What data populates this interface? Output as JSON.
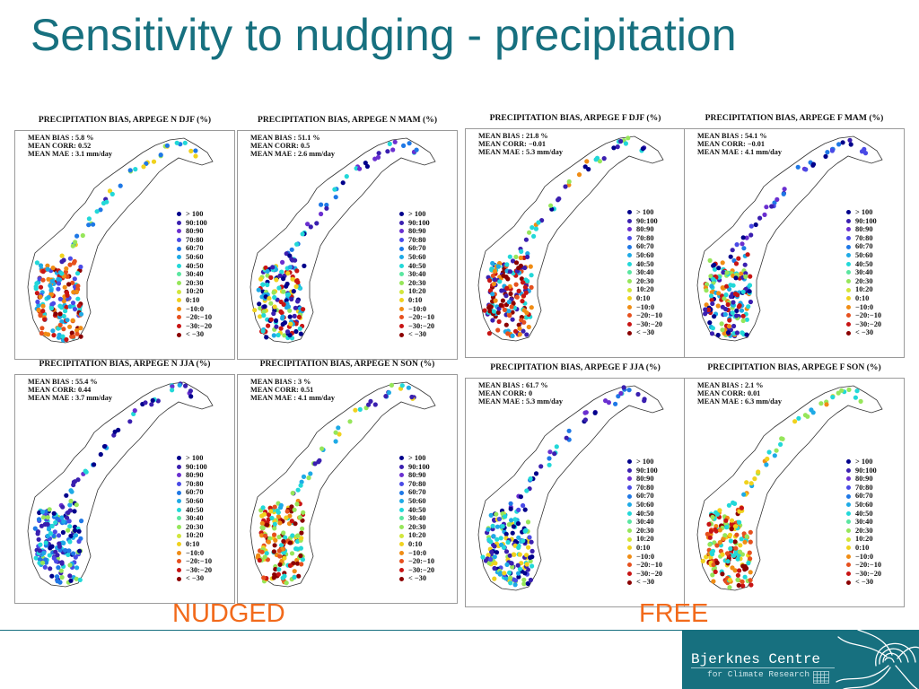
{
  "slide": {
    "title": "Sensitivity to nudging - precipitation",
    "label_left": "NUDGED",
    "label_right": "FREE"
  },
  "colors": {
    "title": "#17707f",
    "label": "#f26a1b",
    "brand": "#17707f"
  },
  "legend": [
    {
      "label": "> 100",
      "color": "#00008b"
    },
    {
      "label": "90:100",
      "color": "#3a1fb0"
    },
    {
      "label": "80:90",
      "color": "#6a2fd0"
    },
    {
      "label": "70:80",
      "color": "#4a4ae6"
    },
    {
      "label": "60:70",
      "color": "#1e78e6"
    },
    {
      "label": "50:60",
      "color": "#1eaae6"
    },
    {
      "label": "40:50",
      "color": "#22d8d8"
    },
    {
      "label": "30:40",
      "color": "#5ae6a0"
    },
    {
      "label": "20:30",
      "color": "#96e65a"
    },
    {
      "label": "10:20",
      "color": "#d2e63c"
    },
    {
      "label": "0:10",
      "color": "#f0d21e"
    },
    {
      "label": "−10:0",
      "color": "#f08c14"
    },
    {
      "label": "−20:−10",
      "color": "#e6501e"
    },
    {
      "label": "−30:−20",
      "color": "#c81414"
    },
    {
      "label": "< −30",
      "color": "#8b0000"
    }
  ],
  "panels": [
    {
      "id": "n-djf",
      "title": "PRECIPITATION BIAS, ARPEGE N DJF (%)",
      "bias": "MEAN BIAS  :  5.8 %",
      "corr": "MEAN CORR: 0.52",
      "mae": "MEAN MAE  : 3.1 mm/day"
    },
    {
      "id": "n-mam",
      "title": "PRECIPITATION BIAS, ARPEGE N MAM (%)",
      "bias": "MEAN BIAS  :  51.1 %",
      "corr": "MEAN CORR: 0.5",
      "mae": "MEAN MAE  : 2.6 mm/day"
    },
    {
      "id": "f-djf",
      "title": "PRECIPITATION BIAS, ARPEGE F DJF (%)",
      "bias": "MEAN BIAS  :  21.8 %",
      "corr": "MEAN CORR: −0.01",
      "mae": "MEAN MAE  : 5.3 mm/day"
    },
    {
      "id": "f-mam",
      "title": "PRECIPITATION BIAS, ARPEGE F MAM (%)",
      "bias": "MEAN BIAS  :  54.1 %",
      "corr": "MEAN CORR: −0.01",
      "mae": "MEAN MAE  : 4.1 mm/day"
    },
    {
      "id": "n-jja",
      "title": "PRECIPITATION BIAS, ARPEGE N JJA (%)",
      "bias": "MEAN BIAS  :  55.4 %",
      "corr": "MEAN CORR: 0.44",
      "mae": "MEAN MAE  : 3.7 mm/day"
    },
    {
      "id": "n-son",
      "title": "PRECIPITATION BIAS, ARPEGE N SON (%)",
      "bias": "MEAN BIAS  :  3 %",
      "corr": "MEAN CORR: 0.51",
      "mae": "MEAN MAE  : 4.1 mm/day"
    },
    {
      "id": "f-jja",
      "title": "PRECIPITATION BIAS, ARPEGE F JJA (%)",
      "bias": "MEAN BIAS  :  61.7 %",
      "corr": "MEAN CORR: 0",
      "mae": "MEAN MAE  : 5.3 mm/day"
    },
    {
      "id": "f-son",
      "title": "PRECIPITATION BIAS, ARPEGE F SON (%)",
      "bias": "MEAN BIAS  :  2.1 %",
      "corr": "MEAN CORR: 0.01",
      "mae": "MEAN MAE  : 6.3 mm/day"
    }
  ],
  "logo": {
    "name": "Bjerknes Centre",
    "subtitle": "for Climate Research"
  }
}
